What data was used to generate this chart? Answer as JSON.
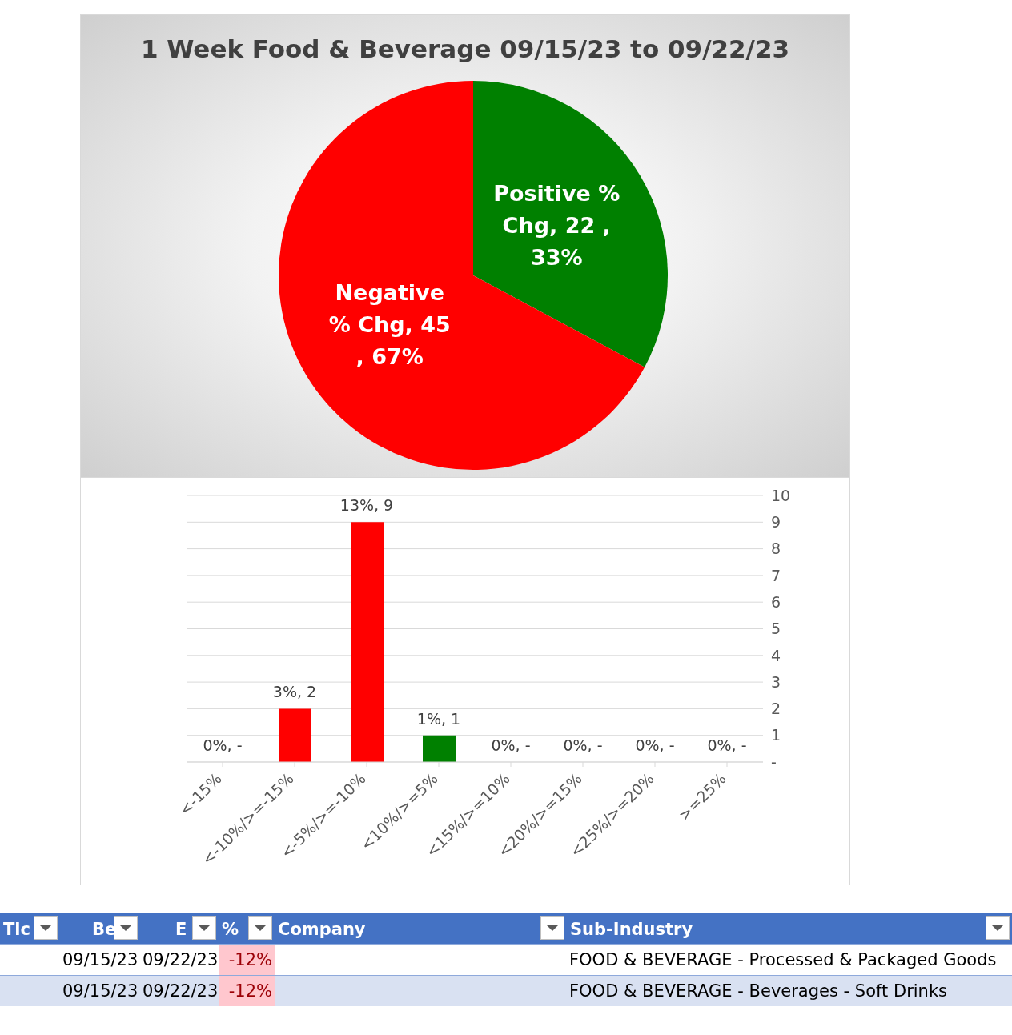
{
  "chart_data": [
    {
      "type": "pie",
      "title": "1 Week Food & Beverage 09/15/23 to 09/22/23",
      "categories": [
        "Positive % Chg",
        "Negative % Chg"
      ],
      "values": [
        22,
        45
      ],
      "colors": [
        "#008000",
        "#ff0000"
      ],
      "value_labels": [
        "22 , 33%",
        "45 , 67%"
      ],
      "legend": false
    },
    {
      "type": "bar",
      "categories": [
        "<-15%",
        "<-10%/>=-15%",
        "<-5%/>=-10%",
        "<10%/>=5%",
        "<15%/>=10%",
        "<20%/>=15%",
        "<25%/>=20%",
        ">=25%"
      ],
      "values": [
        0,
        2,
        9,
        1,
        0,
        0,
        0,
        0
      ],
      "colors": [
        "#ff0000",
        "#ff0000",
        "#ff0000",
        "#008000",
        "#008000",
        "#008000",
        "#008000",
        "#008000"
      ],
      "value_labels": [
        "0%, -",
        "3%,  2",
        "13%,  9",
        "1%,  1",
        "0%, -",
        "0%, -",
        "0%, -",
        "0%, -"
      ],
      "ylim": [
        0,
        10
      ],
      "yticks": [
        {
          "value": 0,
          "label": "-"
        },
        1,
        2,
        3,
        4,
        5,
        6,
        7,
        8,
        9,
        10
      ],
      "grid": "y",
      "legend": false
    },
    {
      "type": "other",
      "categories": [
        "Tic",
        "Be",
        "E",
        "%",
        "Company",
        "Sub-Industry"
      ],
      "cell_labels": [
        [
          null,
          "09/15/23",
          "09/22/23",
          "-12%",
          null,
          "FOOD & BEVERAGE - Processed & Packaged Goods"
        ],
        [
          null,
          "09/15/23",
          "09/22/23",
          "-12%",
          null,
          "FOOD & BEVERAGE - Beverages - Soft Drinks"
        ]
      ]
    }
  ]
}
